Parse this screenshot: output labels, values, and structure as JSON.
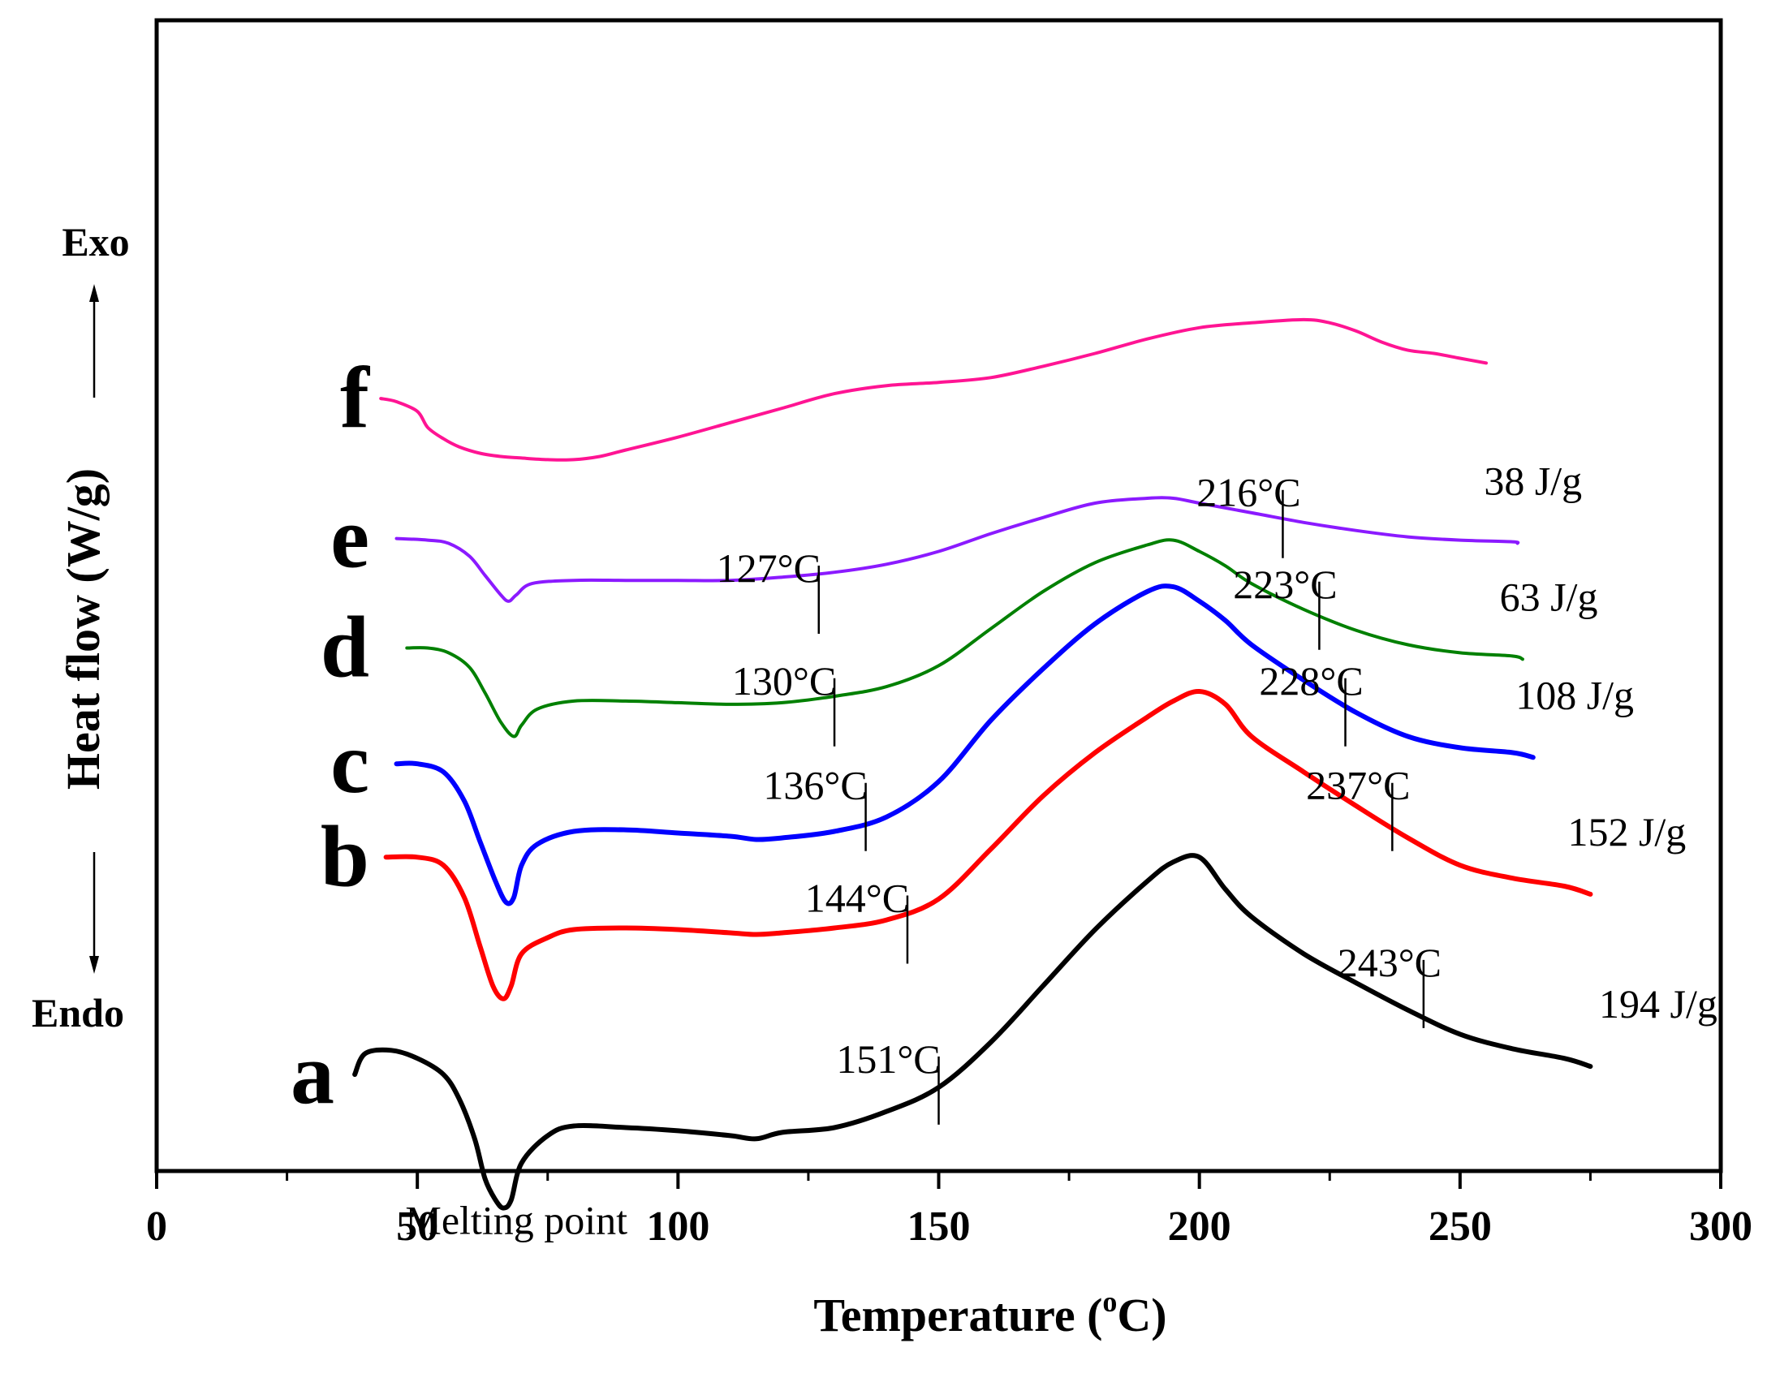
{
  "chart_data": {
    "type": "line",
    "title": "",
    "xlabel": "Temperature (",
    "xlabel_sup": "o",
    "xlabel_end": "C)",
    "ylabel": "Heat flow (W/g)",
    "exo_label": "Exo",
    "endo_label": "Endo",
    "xlim": [
      0,
      300
    ],
    "ylim": [
      -0.1,
      7.05
    ],
    "x_ticks": [
      0,
      50,
      100,
      150,
      200,
      250,
      300
    ],
    "x_tick_labels": [
      "0",
      "50",
      "100",
      "150",
      "200",
      "250",
      "300"
    ],
    "annotation": "Melting point",
    "annotation_at": [
      69,
      -0.34
    ],
    "deg_symbol": "°C",
    "series": [
      {
        "name": "a",
        "color": "#000000",
        "onset": {
          "value": "151",
          "x": 150,
          "y": 0.4
        },
        "peak": {
          "value": "243",
          "x": 243,
          "y": 1.0
        },
        "enthalpy": "194 J/g",
        "enthalpy_at": 280,
        "x": [
          38,
          40,
          45,
          50,
          55,
          58,
          61,
          63,
          65,
          66.5,
          68,
          70,
          75,
          80,
          90,
          100,
          110,
          115,
          120,
          130,
          140,
          150,
          160,
          170,
          180,
          190,
          195,
          200,
          205,
          210,
          220,
          230,
          240,
          250,
          260,
          270,
          275
        ],
        "y": [
          0.5,
          0.63,
          0.65,
          0.6,
          0.5,
          0.35,
          0.1,
          -0.15,
          -0.28,
          -0.33,
          -0.28,
          -0.05,
          0.12,
          0.18,
          0.17,
          0.15,
          0.12,
          0.1,
          0.14,
          0.17,
          0.27,
          0.42,
          0.7,
          1.05,
          1.4,
          1.7,
          1.82,
          1.85,
          1.65,
          1.48,
          1.25,
          1.07,
          0.9,
          0.75,
          0.66,
          0.6,
          0.55
        ]
      },
      {
        "name": "b",
        "color": "#ff0000",
        "onset": {
          "value": "144",
          "x": 144,
          "y": 1.4
        },
        "peak": {
          "value": "237",
          "x": 237,
          "y": 2.1
        },
        "enthalpy": "152 J/g",
        "enthalpy_at": 274,
        "x": [
          44,
          50,
          55,
          59,
          62,
          64.5,
          66.5,
          68,
          70,
          75,
          80,
          90,
          100,
          110,
          115,
          120,
          130,
          140,
          150,
          160,
          170,
          180,
          190,
          195,
          200,
          205,
          210,
          220,
          230,
          240,
          250,
          260,
          270,
          275
        ],
        "y": [
          1.85,
          1.85,
          1.8,
          1.6,
          1.3,
          1.05,
          0.97,
          1.05,
          1.25,
          1.35,
          1.4,
          1.41,
          1.4,
          1.38,
          1.37,
          1.38,
          1.41,
          1.46,
          1.59,
          1.9,
          2.23,
          2.5,
          2.72,
          2.82,
          2.88,
          2.8,
          2.6,
          2.38,
          2.17,
          1.97,
          1.8,
          1.72,
          1.67,
          1.62
        ]
      },
      {
        "name": "c",
        "color": "#0000ff",
        "onset": {
          "value": "136",
          "x": 136,
          "y": 2.1
        },
        "peak": {
          "value": "228",
          "x": 228,
          "y": 2.75
        },
        "enthalpy": "108 J/g",
        "enthalpy_at": 264,
        "x": [
          46,
          50,
          55,
          59,
          62,
          65,
          67,
          68.5,
          70,
          73,
          80,
          90,
          100,
          110,
          115,
          120,
          130,
          140,
          150,
          160,
          170,
          180,
          190,
          195,
          200,
          205,
          210,
          220,
          230,
          240,
          250,
          260,
          264
        ],
        "y": [
          2.43,
          2.43,
          2.38,
          2.2,
          1.95,
          1.7,
          1.57,
          1.6,
          1.8,
          1.93,
          2.01,
          2.02,
          2.0,
          1.98,
          1.96,
          1.97,
          2.01,
          2.1,
          2.32,
          2.7,
          3.02,
          3.3,
          3.5,
          3.53,
          3.44,
          3.32,
          3.17,
          2.95,
          2.75,
          2.6,
          2.53,
          2.5,
          2.47
        ]
      },
      {
        "name": "d",
        "color": "#008000",
        "onset": {
          "value": "130",
          "x": 130,
          "y": 2.75
        },
        "peak": {
          "value": "223",
          "x": 223,
          "y": 3.35
        },
        "enthalpy": "63 J/g",
        "enthalpy_at": 259,
        "x": [
          48,
          52,
          56,
          60,
          63,
          66,
          68.5,
          70,
          73,
          80,
          90,
          100,
          110,
          120,
          130,
          140,
          150,
          160,
          170,
          180,
          190,
          195,
          200,
          205,
          210,
          220,
          230,
          240,
          250,
          260,
          262
        ],
        "y": [
          3.15,
          3.15,
          3.12,
          3.03,
          2.87,
          2.69,
          2.6,
          2.67,
          2.77,
          2.82,
          2.82,
          2.81,
          2.8,
          2.81,
          2.85,
          2.91,
          3.04,
          3.27,
          3.5,
          3.68,
          3.79,
          3.82,
          3.75,
          3.66,
          3.55,
          3.39,
          3.26,
          3.17,
          3.12,
          3.1,
          3.08
        ]
      },
      {
        "name": "e",
        "color": "#8b1aff",
        "onset": {
          "value": "127",
          "x": 127,
          "y": 3.45
        },
        "peak": {
          "value": "216",
          "x": 216,
          "y": 3.92
        },
        "enthalpy": "38 J/g",
        "enthalpy_at": 256,
        "x": [
          46,
          52,
          56,
          60,
          63,
          66,
          67.5,
          69,
          72,
          80,
          90,
          100,
          110,
          120,
          130,
          140,
          150,
          160,
          170,
          180,
          190,
          195,
          200,
          210,
          220,
          230,
          240,
          250,
          260,
          261
        ],
        "y": [
          3.83,
          3.82,
          3.8,
          3.72,
          3.6,
          3.48,
          3.44,
          3.48,
          3.55,
          3.57,
          3.57,
          3.57,
          3.57,
          3.59,
          3.62,
          3.67,
          3.75,
          3.86,
          3.96,
          4.05,
          4.08,
          4.08,
          4.05,
          3.99,
          3.93,
          3.88,
          3.84,
          3.82,
          3.81,
          3.8
        ]
      },
      {
        "name": "f",
        "color": "#ff1493",
        "onset": null,
        "peak": null,
        "enthalpy": null,
        "x": [
          43,
          46,
          50,
          52,
          55,
          58,
          62,
          66,
          70,
          75,
          80,
          85,
          90,
          100,
          110,
          120,
          130,
          140,
          150,
          160,
          170,
          180,
          190,
          200,
          210,
          220,
          225,
          230,
          235,
          240,
          245,
          250,
          255
        ],
        "y": [
          4.7,
          4.68,
          4.62,
          4.52,
          4.45,
          4.4,
          4.36,
          4.34,
          4.33,
          4.32,
          4.32,
          4.34,
          4.38,
          4.46,
          4.55,
          4.64,
          4.73,
          4.78,
          4.8,
          4.83,
          4.9,
          4.98,
          5.07,
          5.14,
          5.17,
          5.19,
          5.17,
          5.12,
          5.05,
          5.0,
          4.98,
          4.95,
          4.92
        ]
      }
    ]
  }
}
